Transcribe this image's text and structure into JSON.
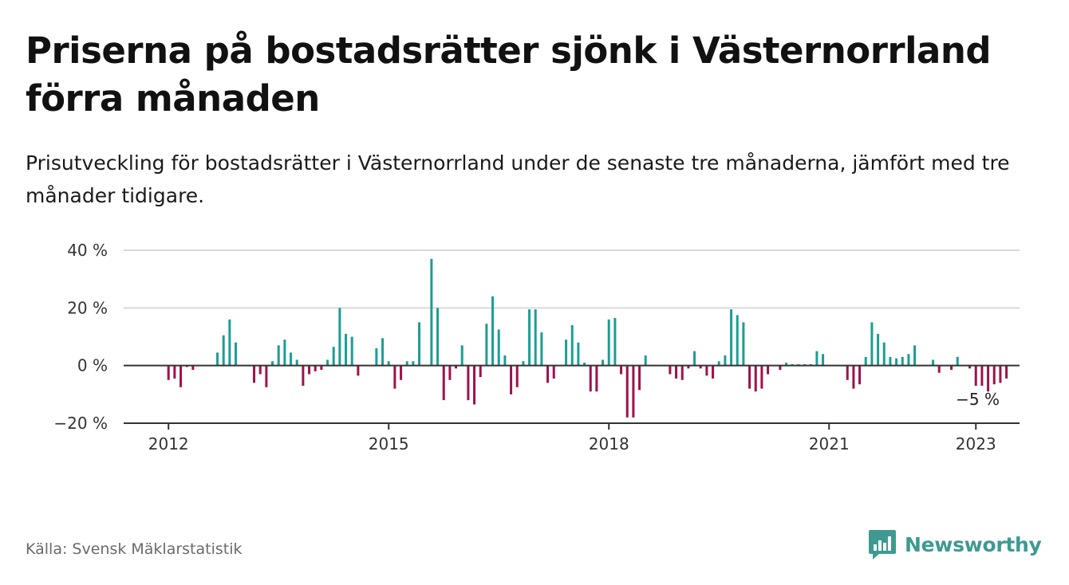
{
  "header": {
    "title": "Priserna på bostadsrätter sjönk i Västernorrland förra månaden",
    "subtitle": "Prisutveckling för bostadsrätter i Västernorrland under de senaste tre månaderna, jämfört med tre månader tidigare."
  },
  "footer": {
    "source": "Källa: Svensk Mäklarstatistik",
    "brand": "Newsworthy"
  },
  "colors": {
    "positive": "#1a9e96",
    "negative": "#a0104a",
    "brand": "#3e9a91",
    "grid": "#d9d9d9",
    "axis": "#333333"
  },
  "chart_data": {
    "type": "bar",
    "start": "2011-01",
    "end_label": "−5 %",
    "ylim": [
      -20,
      40
    ],
    "y_ticks": [
      {
        "value": 40,
        "label": "40 %"
      },
      {
        "value": 20,
        "label": "20 %"
      },
      {
        "value": 0,
        "label": "0 %"
      },
      {
        "value": -20,
        "label": "−20 %"
      }
    ],
    "x_ticks": [
      {
        "year": "2012"
      },
      {
        "year": "2015"
      },
      {
        "year": "2018"
      },
      {
        "year": "2021"
      },
      {
        "year": "2023"
      }
    ],
    "grid": true,
    "values": [
      0,
      0,
      0,
      0,
      0,
      0,
      0,
      0,
      0,
      0,
      0,
      0,
      -5,
      -4.5,
      -7.5,
      -0.5,
      -1.5,
      0,
      0,
      0,
      4.5,
      10.5,
      16,
      8,
      0,
      0,
      -6,
      -3,
      -7.5,
      1.5,
      7,
      9,
      4.5,
      2,
      -7,
      -3,
      -2,
      -1.5,
      2,
      6.5,
      20,
      11,
      10,
      -3.5,
      0,
      0,
      6,
      9.5,
      1.5,
      -8,
      -5,
      1.5,
      1.5,
      15,
      0,
      37,
      20,
      -12,
      -5,
      -1,
      7,
      -12,
      -13.5,
      -4,
      14.5,
      24,
      12.5,
      3.5,
      -10,
      -7.5,
      1.5,
      19.5,
      19.5,
      11.5,
      -6,
      -4.5,
      0,
      9,
      14,
      8,
      1,
      -9,
      -9,
      2,
      16,
      16.5,
      -3,
      -18,
      -18,
      -8.5,
      3.5,
      0,
      0,
      0,
      -3,
      -4.5,
      -5,
      -1,
      5,
      -1,
      -3.5,
      -4.5,
      1.5,
      3.5,
      19.5,
      17.5,
      15,
      -8,
      -9,
      -8,
      -3,
      0,
      -1.5,
      1,
      0.5,
      0.5,
      0.5,
      0.5,
      5,
      4,
      0,
      0,
      0,
      -5,
      -8,
      -6.5,
      3,
      15,
      11,
      8,
      3,
      2.5,
      3,
      4,
      7,
      0,
      0,
      2,
      -2.5,
      0,
      -1.5,
      3,
      0,
      -1,
      -7,
      -7,
      -9,
      -6.5,
      -6,
      -4.5
    ]
  }
}
